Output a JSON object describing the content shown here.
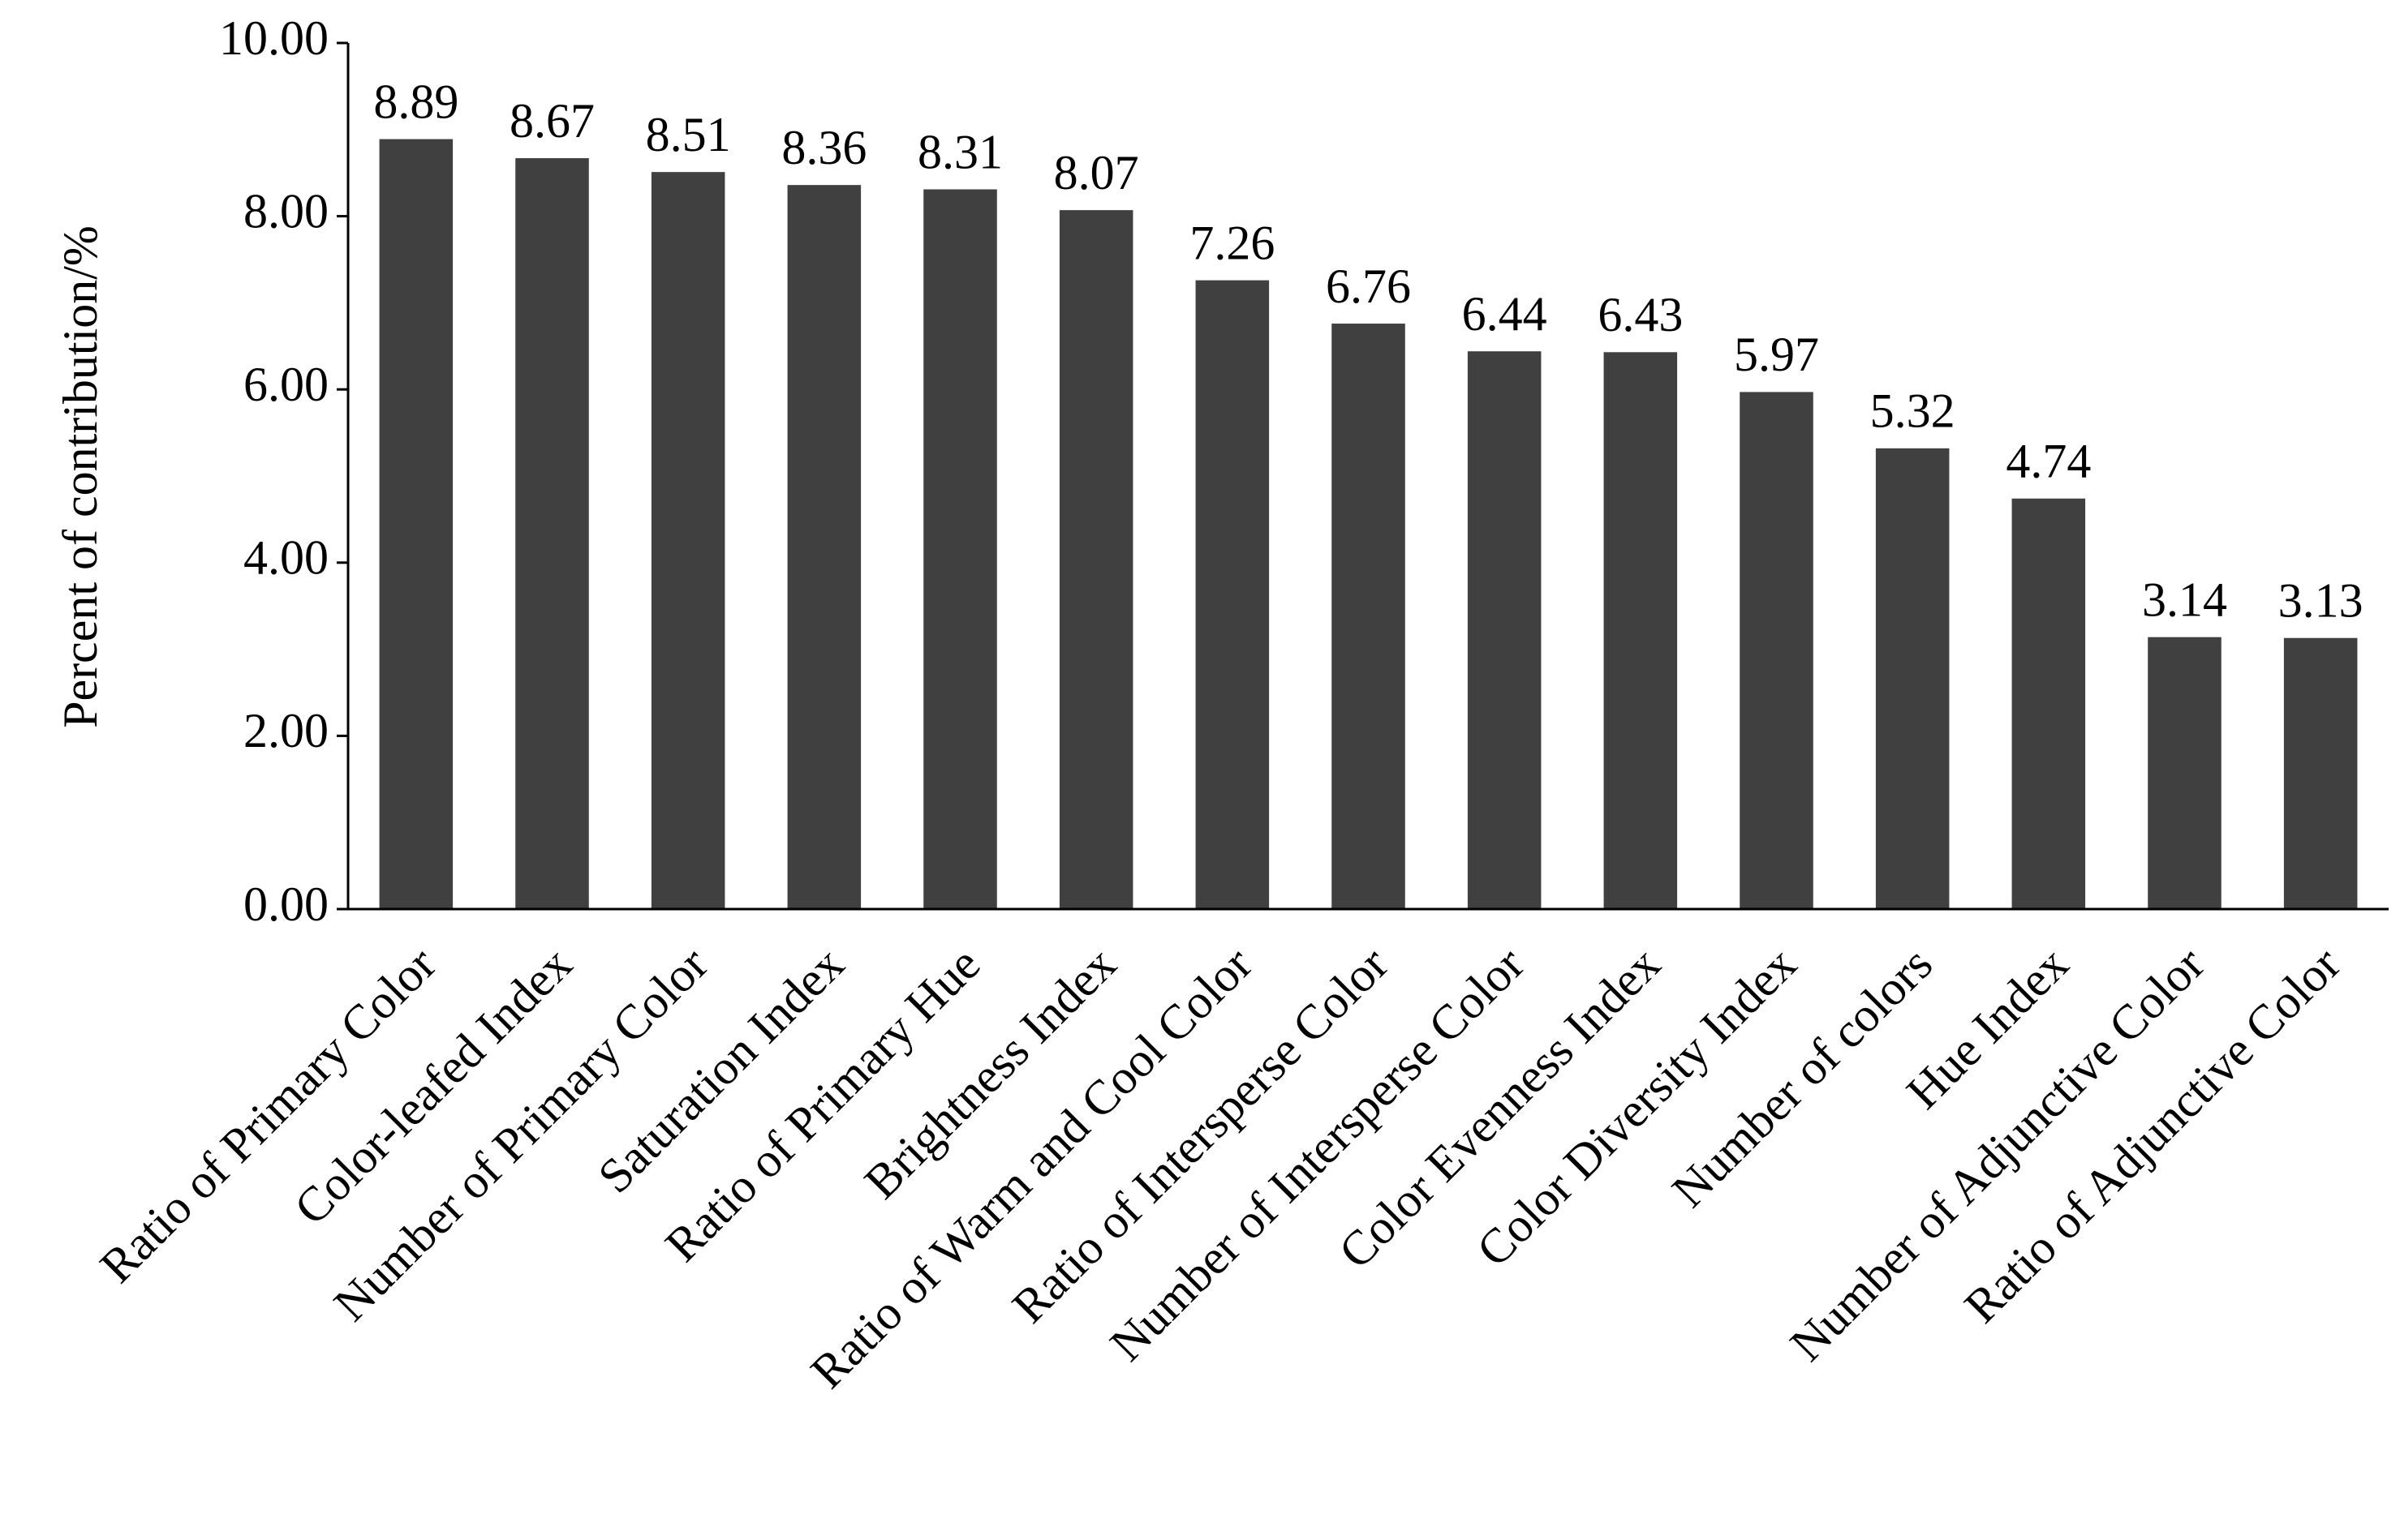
{
  "chart_data": {
    "type": "bar",
    "y_label": "Percent of contribution/%",
    "categories": [
      "Ratio of Primary Color",
      "Color-leafed Index",
      "Number of Primary Color",
      "Saturation Index",
      "Ratio of Primary Hue",
      "Brightness Index",
      "Ratio of Warm and Cool Color",
      "Ratio of Intersperse Color",
      "Number of Intersperse Color",
      "Color Evenness Index",
      "Color Diversity Index",
      "Number of colors",
      "Hue Index",
      "Number of Adjunctive Color",
      "Ratio of Adjunctive Color"
    ],
    "values": [
      8.89,
      8.67,
      8.51,
      8.36,
      8.31,
      8.07,
      7.26,
      6.76,
      6.44,
      6.43,
      5.97,
      5.32,
      4.74,
      3.14,
      3.13
    ],
    "color": "#404040",
    "ylim": [
      0,
      10
    ],
    "yticks": [
      {
        "value": 0,
        "label": "0.00"
      },
      {
        "value": 2,
        "label": "2.00"
      },
      {
        "value": 4,
        "label": "4.00"
      },
      {
        "value": 6,
        "label": "6.00"
      },
      {
        "value": 8,
        "label": "8.00"
      },
      {
        "value": 10,
        "label": "10.00"
      }
    ],
    "grid": false
  }
}
